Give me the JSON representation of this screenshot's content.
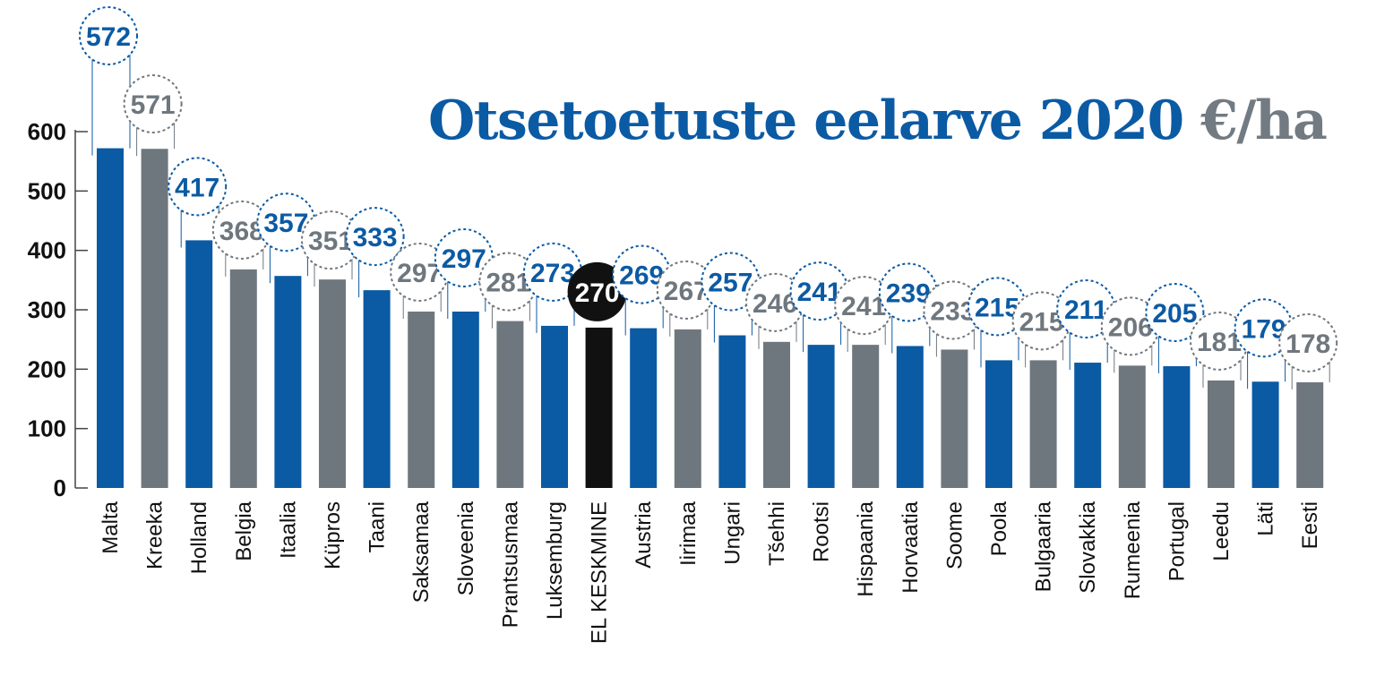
{
  "chart_data": {
    "type": "bar",
    "title_main": "Otsetoetuste eelarve 2020",
    "title_unit": "€/ha",
    "ylim": [
      0,
      600
    ],
    "yticks": [
      "0",
      "100",
      "200",
      "300",
      "400",
      "500",
      "600"
    ],
    "categories": [
      "Malta",
      "Kreeka",
      "Holland",
      "Belgia",
      "Itaalia",
      "Küpros",
      "Taani",
      "Saksamaa",
      "Sloveenia",
      "Prantsusmaa",
      "Luksemburg",
      "EL KESKMINE",
      "Austria",
      "Iirimaa",
      "Ungari",
      "Tšehhi",
      "Rootsi",
      "Hispaania",
      "Horvaatia",
      "Soome",
      "Poola",
      "Bulgaaria",
      "Slovakkia",
      "Rumeenia",
      "Portugal",
      "Leedu",
      "Läti",
      "Eesti"
    ],
    "values": [
      572,
      571,
      417,
      368,
      357,
      351,
      333,
      297,
      297,
      281,
      273,
      270,
      269,
      267,
      257,
      246,
      241,
      241,
      239,
      233,
      215,
      215,
      211,
      206,
      205,
      181,
      179,
      178
    ],
    "value_labels": [
      "572",
      "571",
      "417",
      "368",
      "357",
      "351",
      "333",
      "297",
      "297",
      "281",
      "273",
      "270",
      "269",
      "267",
      "257",
      "246",
      "241",
      "241",
      "239",
      "233",
      "215",
      "215",
      "211",
      "206",
      "205",
      "181",
      "179",
      "178"
    ],
    "colors": {
      "blue": "#0b5aa4",
      "gray": "#6f777e",
      "highlight": "#111111"
    },
    "highlight_category": "EL KESKMINE",
    "grid": false,
    "legend": "none"
  }
}
